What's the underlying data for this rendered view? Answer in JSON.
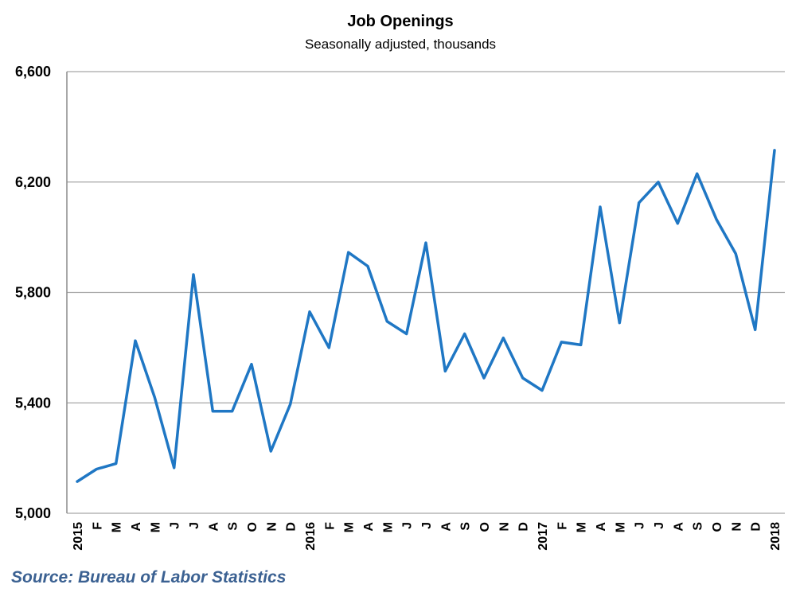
{
  "chart_data": {
    "type": "line",
    "title": "Job Openings",
    "subtitle": "Seasonally adjusted, thousands",
    "xlabel": "",
    "ylabel": "",
    "ylim": [
      5000,
      6600
    ],
    "yticks": [
      "5,000",
      "5,400",
      "5,800",
      "6,200",
      "6,600"
    ],
    "categories": [
      "2015",
      "F",
      "M",
      "A",
      "M",
      "J",
      "J",
      "A",
      "S",
      "O",
      "N",
      "D",
      "2016",
      "F",
      "M",
      "A",
      "M",
      "J",
      "J",
      "A",
      "S",
      "O",
      "N",
      "D",
      "2017",
      "F",
      "M",
      "A",
      "M",
      "J",
      "J",
      "A",
      "S",
      "O",
      "N",
      "D",
      "2018"
    ],
    "series": [
      {
        "values": [
          5115,
          5160,
          5180,
          5625,
          5420,
          5165,
          5865,
          5370,
          5370,
          5540,
          5225,
          5395,
          5730,
          5600,
          5945,
          5895,
          5695,
          5650,
          5980,
          5515,
          5650,
          5490,
          5635,
          5490,
          5445,
          5620,
          5610,
          6110,
          5690,
          6125,
          6200,
          6050,
          6230,
          6065,
          5940,
          5665,
          6315
        ],
        "color": "#1f77c4"
      }
    ],
    "grid": true,
    "legend": "none"
  },
  "source": "Source: Bureau of Labor Statistics"
}
